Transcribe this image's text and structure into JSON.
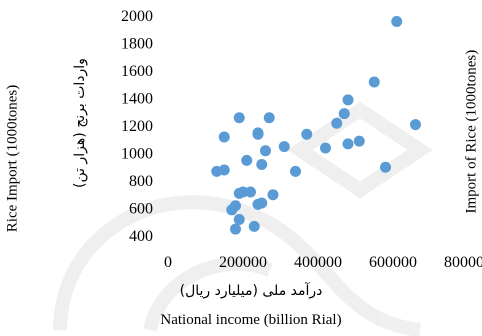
{
  "chart_data": {
    "type": "scatter",
    "title": "",
    "xlabel": "National income (billion Rial)",
    "xlabel_fa": "درآمد ملی (میلیارد ریال)",
    "ylabel": "Rice Import (1000tones)",
    "ylabel_fa": "واردات برنج (هزار تن)",
    "ylabel_right": "Import of Rice (1000tones)",
    "xlim": [
      0,
      800000
    ],
    "ylim": [
      400,
      2000
    ],
    "xticks": [
      "0",
      "200000",
      "400000",
      "600000",
      "800000"
    ],
    "yticks": [
      "400",
      "600",
      "800",
      "1000",
      "1200",
      "1400",
      "1600",
      "1800",
      "2000"
    ],
    "grid": false,
    "legend": "none",
    "marker_color": "#5b9bd5",
    "series": [
      {
        "points": [
          [
            130000,
            870
          ],
          [
            150000,
            880
          ],
          [
            150000,
            1120
          ],
          [
            170000,
            590
          ],
          [
            180000,
            620
          ],
          [
            180000,
            450
          ],
          [
            190000,
            710
          ],
          [
            190000,
            520
          ],
          [
            190000,
            1260
          ],
          [
            200000,
            720
          ],
          [
            210000,
            950
          ],
          [
            220000,
            720
          ],
          [
            230000,
            470
          ],
          [
            240000,
            630
          ],
          [
            240000,
            1140
          ],
          [
            240000,
            1150
          ],
          [
            250000,
            640
          ],
          [
            250000,
            920
          ],
          [
            260000,
            1020
          ],
          [
            270000,
            1260
          ],
          [
            280000,
            700
          ],
          [
            310000,
            1050
          ],
          [
            340000,
            870
          ],
          [
            370000,
            1140
          ],
          [
            420000,
            1040
          ],
          [
            450000,
            1220
          ],
          [
            470000,
            1290
          ],
          [
            480000,
            1390
          ],
          [
            480000,
            1070
          ],
          [
            510000,
            1090
          ],
          [
            550000,
            1520
          ],
          [
            580000,
            900
          ],
          [
            610000,
            1960
          ],
          [
            660000,
            1210
          ]
        ]
      }
    ]
  }
}
